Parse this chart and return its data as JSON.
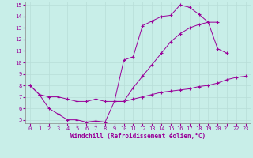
{
  "xlabel": "Windchill (Refroidissement éolien,°C)",
  "background_color": "#c8eee8",
  "line_color": "#990099",
  "grid_color": "#b8ddd8",
  "xlim": [
    -0.5,
    23.5
  ],
  "ylim": [
    4.7,
    15.3
  ],
  "xticks": [
    0,
    1,
    2,
    3,
    4,
    5,
    6,
    7,
    8,
    9,
    10,
    11,
    12,
    13,
    14,
    15,
    16,
    17,
    18,
    19,
    20,
    21,
    22,
    23
  ],
  "yticks": [
    5,
    6,
    7,
    8,
    9,
    10,
    11,
    12,
    13,
    14,
    15
  ],
  "line1_x": [
    0,
    1,
    2,
    3,
    4,
    5,
    6,
    7,
    8,
    9,
    10,
    11,
    12,
    13,
    14,
    15,
    16,
    17,
    18,
    19,
    20,
    21
  ],
  "line1_y": [
    8.0,
    7.2,
    6.0,
    5.5,
    5.0,
    5.0,
    4.8,
    4.9,
    4.8,
    6.6,
    10.2,
    10.5,
    13.2,
    13.6,
    14.0,
    14.1,
    15.0,
    14.8,
    14.2,
    13.5,
    11.2,
    10.8
  ],
  "line2_x": [
    0,
    1,
    2,
    3,
    4,
    5,
    6,
    7,
    8,
    9,
    10,
    11,
    12,
    13,
    14,
    15,
    16,
    17,
    18,
    19,
    20,
    21,
    22,
    23
  ],
  "line2_y": [
    8.0,
    7.2,
    7.0,
    7.0,
    6.8,
    6.6,
    6.6,
    6.8,
    6.6,
    6.6,
    6.6,
    7.8,
    8.8,
    9.8,
    10.8,
    11.8,
    12.5,
    13.0,
    13.3,
    13.5,
    13.5,
    null,
    null,
    null
  ],
  "line3_x": [
    9,
    10,
    11,
    12,
    13,
    14,
    15,
    16,
    17,
    18,
    19,
    20,
    21,
    22,
    23
  ],
  "line3_y": [
    6.6,
    6.6,
    6.8,
    7.0,
    7.2,
    7.4,
    7.5,
    7.6,
    7.7,
    7.9,
    8.0,
    8.2,
    8.5,
    8.7,
    8.8
  ]
}
